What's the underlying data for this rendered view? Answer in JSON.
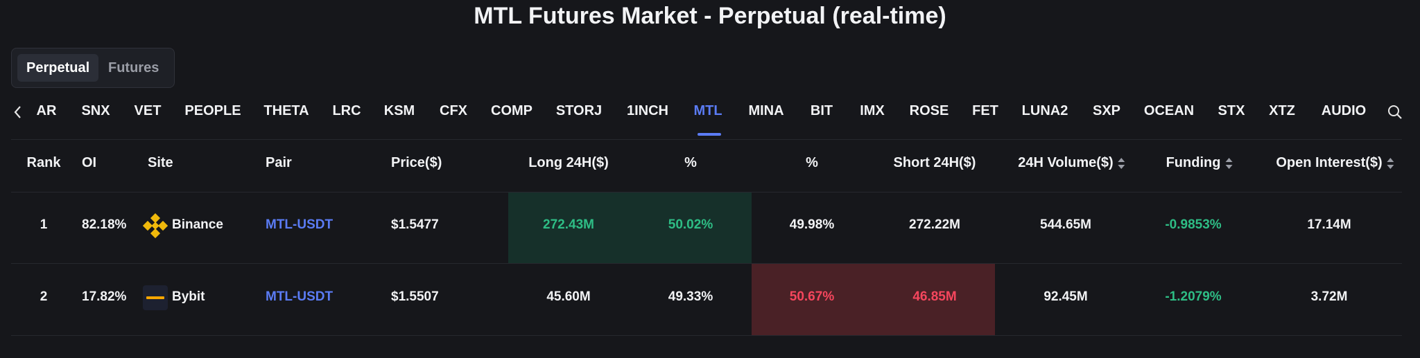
{
  "header": {
    "title": "MTL Futures Market - Perpetual (real-time)"
  },
  "tabs": [
    "Perpetual",
    "Futures"
  ],
  "symbols": [
    "AR",
    "SNX",
    "VET",
    "PEOPLE",
    "THETA",
    "LRC",
    "KSM",
    "CFX",
    "COMP",
    "STORJ",
    "1INCH",
    "MTL",
    "MINA",
    "BIT",
    "IMX",
    "ROSE",
    "FET",
    "LUNA2",
    "SXP",
    "OCEAN",
    "STX",
    "XTZ",
    "AUDIO"
  ],
  "table": {
    "columns": [
      "Rank",
      "OI",
      "Site",
      "Pair",
      "Price($)",
      "Long 24H($)",
      "%",
      "%",
      "Short 24H($)",
      "24H Volume($)",
      "Funding",
      "Open Interest($)"
    ],
    "rows": [
      [
        "1",
        "82.18%",
        "Binance",
        "MTL-USDT",
        "$1.5477",
        "272.43M",
        "50.02%",
        "49.98%",
        "272.22M",
        "544.65M",
        "-0.9853%",
        "17.14M"
      ],
      [
        "2",
        "17.82%",
        "Bybit",
        "MTL-USDT",
        "$1.5507",
        "45.60M",
        "49.33%",
        "50.67%",
        "46.85M",
        "92.45M",
        "-1.2079%",
        "3.72M"
      ]
    ]
  }
}
